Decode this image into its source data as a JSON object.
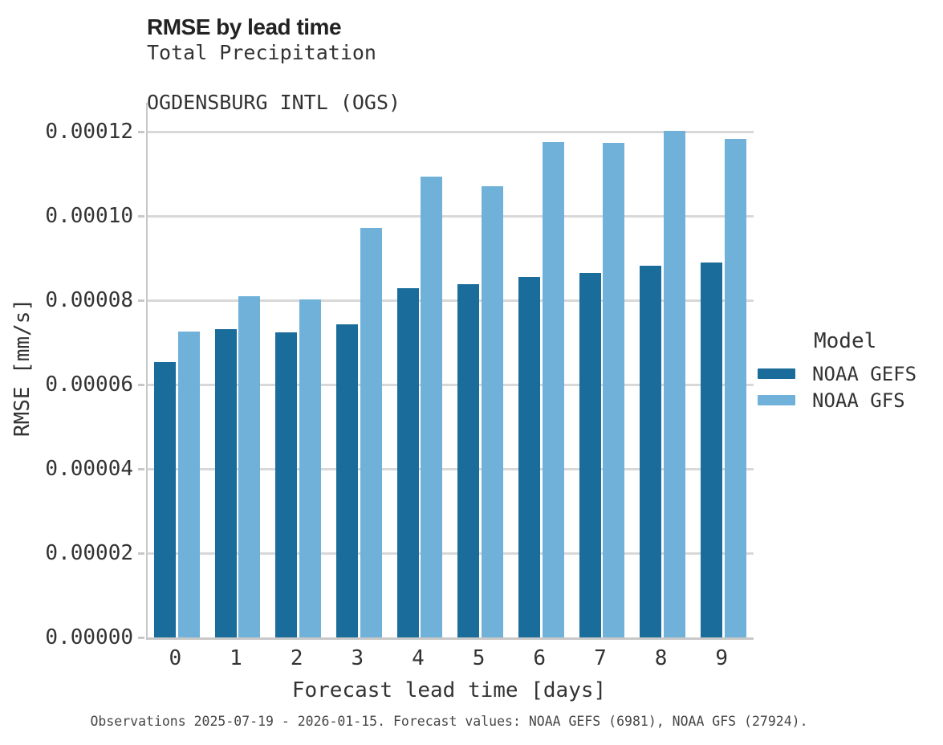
{
  "header": {
    "title": "RMSE by lead time",
    "subtitle_line1": "Total Precipitation",
    "subtitle_line2": "OGDENSBURG INTL (OGS)"
  },
  "caption": "Observations 2025-07-19 - 2026-01-15. Forecast values: NOAA GEFS (6981), NOAA GFS (27924).",
  "legend": {
    "title": "Model",
    "entries": [
      {
        "label": "NOAA GEFS",
        "color": "#1A6C9B"
      },
      {
        "label": "NOAA GFS",
        "color": "#6FB1D8"
      }
    ]
  },
  "chart_data": {
    "type": "bar",
    "title": "RMSE by lead time",
    "subtitle": [
      "Total Precipitation",
      "OGDENSBURG INTL (OGS)"
    ],
    "xlabel": "Forecast lead time [days]",
    "ylabel": "RMSE [mm/s]",
    "categories": [
      "0",
      "1",
      "2",
      "3",
      "4",
      "5",
      "6",
      "7",
      "8",
      "9"
    ],
    "series": [
      {
        "name": "NOAA GEFS",
        "color": "#1A6C9B",
        "values": [
          6.55e-05,
          7.32e-05,
          7.25e-05,
          7.43e-05,
          8.29e-05,
          8.4e-05,
          8.56e-05,
          8.65e-05,
          8.83e-05,
          8.9e-05
        ]
      },
      {
        "name": "NOAA GFS",
        "color": "#6FB1D8",
        "values": [
          7.27e-05,
          8.11e-05,
          8.03e-05,
          9.72e-05,
          0.0001095,
          0.0001071,
          0.0001177,
          0.0001174,
          0.0001204,
          0.0001184
        ]
      }
    ],
    "y_ticks": [
      0.0,
      2e-05,
      4e-05,
      6e-05,
      8e-05,
      0.0001,
      0.00012
    ],
    "y_tick_labels": [
      "0.00000",
      "0.00002",
      "0.00004",
      "0.00006",
      "0.00008",
      "0.00010",
      "0.00012"
    ],
    "ylim": [
      0,
      0.000127
    ],
    "grid": "horizontal",
    "legend_position": "right",
    "colors": {
      "gridline": "#D8D8D8",
      "spine": "#C8C8C8"
    }
  }
}
